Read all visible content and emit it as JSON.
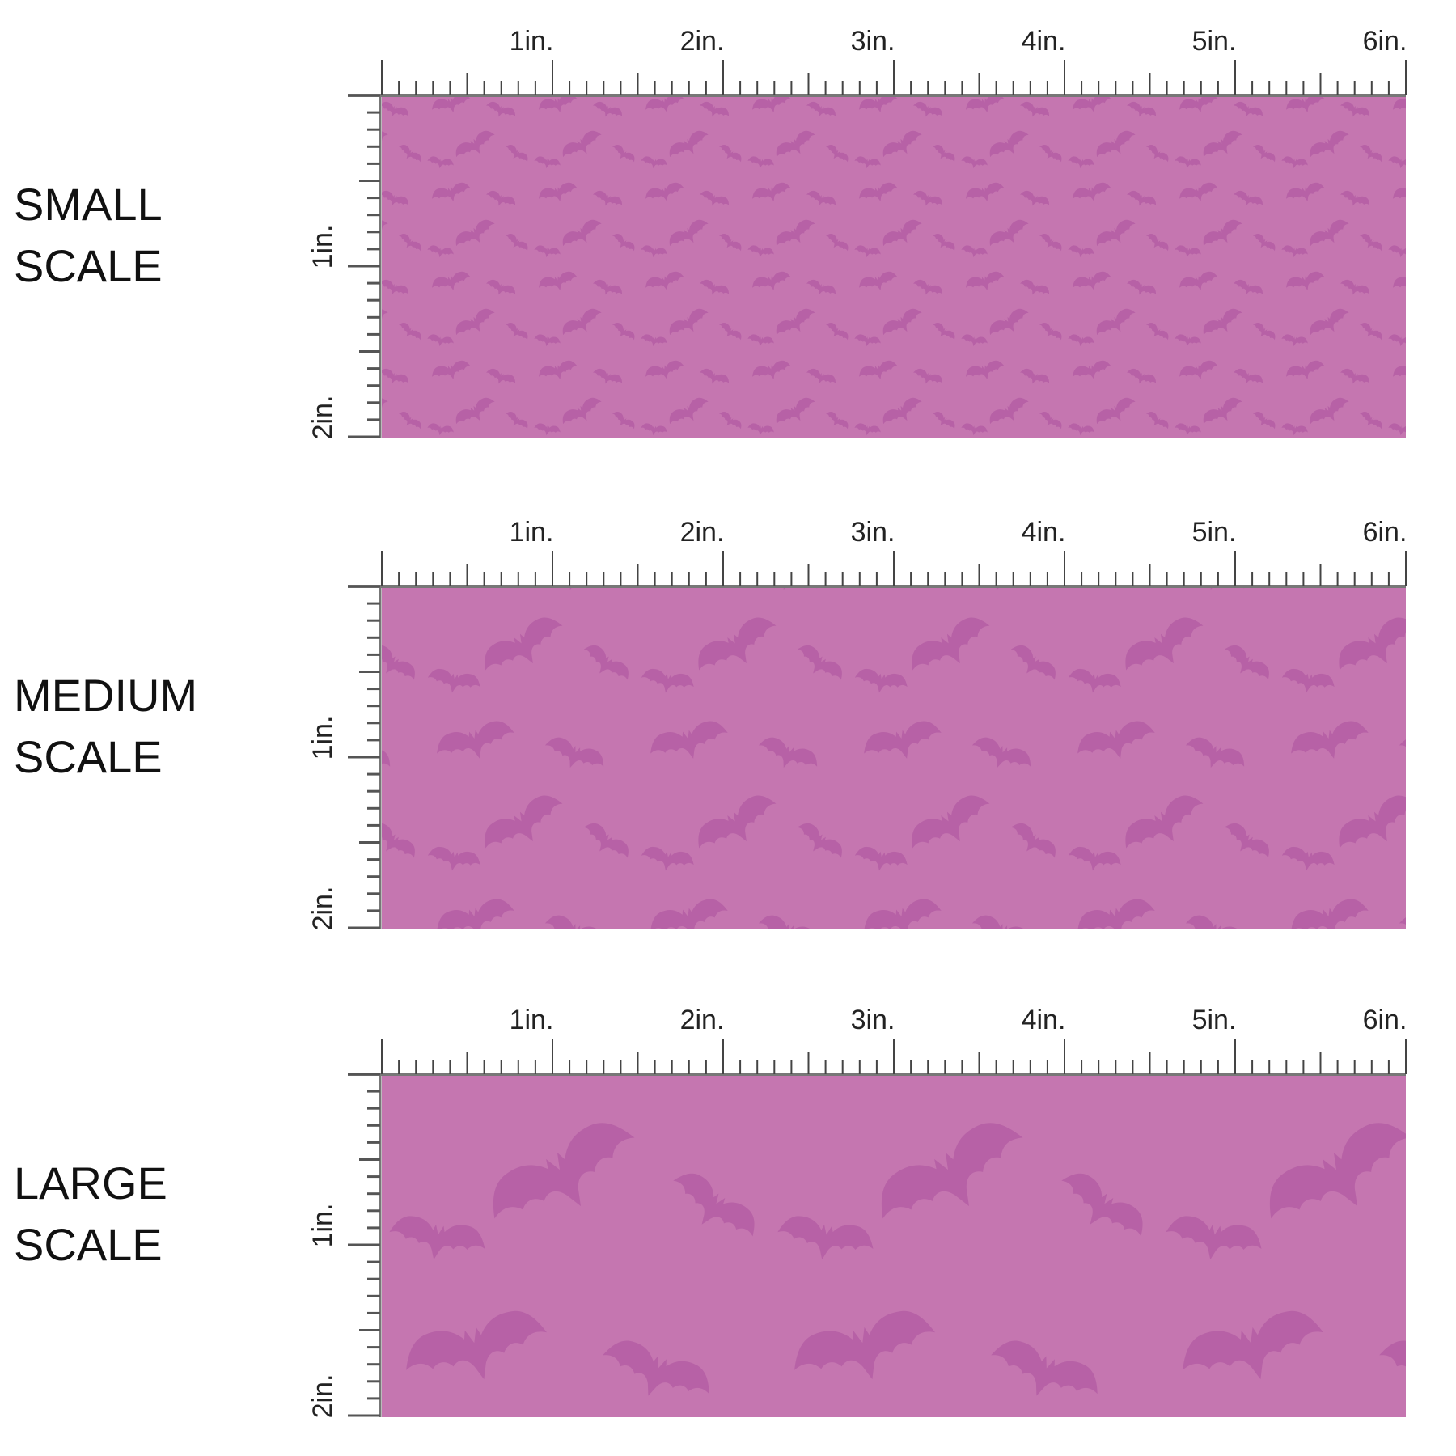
{
  "panels": [
    {
      "label_lines": [
        "SMALL",
        "SCALE"
      ],
      "top_ticks": [
        "1in.",
        "2in.",
        "3in.",
        "4in.",
        "5in.",
        "6in."
      ],
      "side_ticks": [
        "1in.",
        "2in."
      ]
    },
    {
      "label_lines": [
        "MEDIUM",
        "SCALE"
      ],
      "top_ticks": [
        "1in.",
        "2in.",
        "3in.",
        "4in.",
        "5in.",
        "6in."
      ],
      "side_ticks": [
        "1in.",
        "2in."
      ]
    },
    {
      "label_lines": [
        "LARGE",
        "SCALE"
      ],
      "top_ticks": [
        "1in.",
        "2in.",
        "3in.",
        "4in.",
        "5in.",
        "6in."
      ],
      "side_ticks": [
        "1in.",
        "2in."
      ]
    }
  ]
}
